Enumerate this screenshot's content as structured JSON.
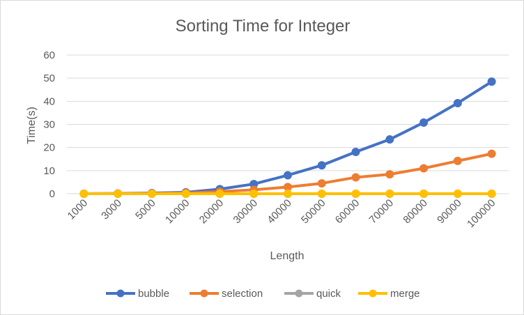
{
  "chart_data": {
    "type": "line",
    "title": "Sorting Time for Integer",
    "xlabel": "Length",
    "ylabel": "Time(s)",
    "categories": [
      "1000",
      "3000",
      "5000",
      "10000",
      "20000",
      "30000",
      "40000",
      "50000",
      "60000",
      "70000",
      "80000",
      "90000",
      "100000"
    ],
    "ylim": [
      0,
      60
    ],
    "yticks": [
      0,
      10,
      20,
      30,
      40,
      50,
      60
    ],
    "grid": true,
    "legend_position": "bottom",
    "series": [
      {
        "name": "bubble",
        "color": "#4472c4",
        "values": [
          0.02,
          0.1,
          0.3,
          0.6,
          2.0,
          4.2,
          8.0,
          12.3,
          18.1,
          23.5,
          30.8,
          39.2,
          48.5
        ]
      },
      {
        "name": "selection",
        "color": "#ed7d31",
        "values": [
          0.01,
          0.05,
          0.15,
          0.3,
          0.9,
          1.7,
          2.9,
          4.5,
          7.1,
          8.4,
          11.0,
          14.2,
          17.3
        ]
      },
      {
        "name": "quick",
        "color": "#a5a5a5",
        "values": [
          0.0,
          0.0,
          0.0,
          0.0,
          0.0,
          0.0,
          0.0,
          0.0,
          0.0,
          0.0,
          0.0,
          0.0,
          0.0
        ]
      },
      {
        "name": "merge",
        "color": "#ffc000",
        "values": [
          0.0,
          0.0,
          0.0,
          0.01,
          0.01,
          0.01,
          0.02,
          0.02,
          0.02,
          0.03,
          0.03,
          0.03,
          0.04
        ]
      }
    ]
  }
}
